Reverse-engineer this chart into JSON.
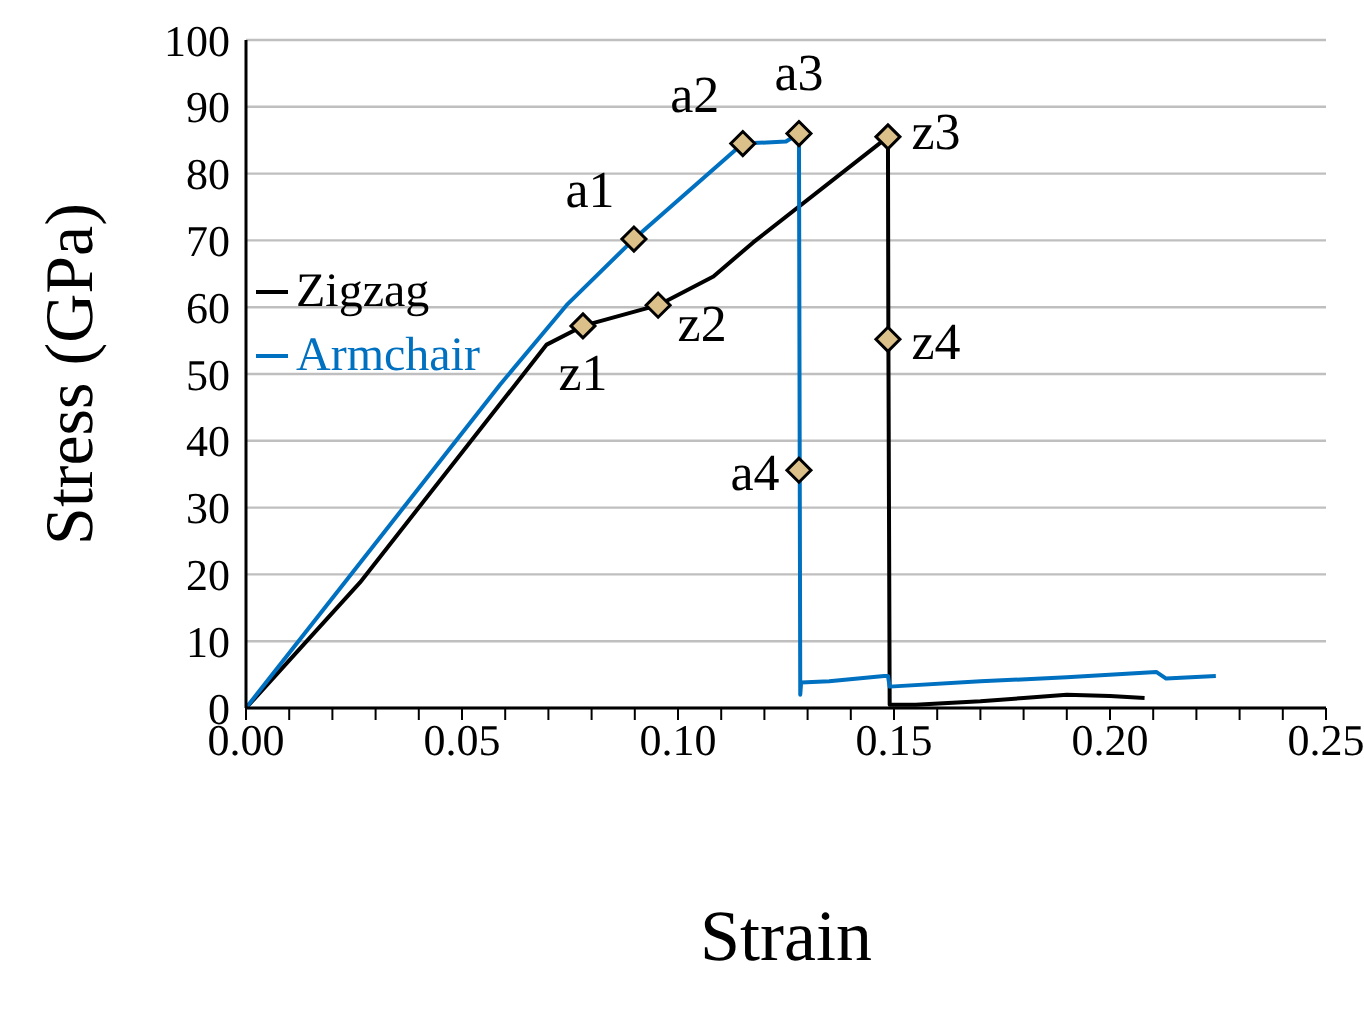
{
  "chart_data": {
    "type": "line",
    "xlabel": "Strain",
    "ylabel": "Stress (GPa)",
    "xlim": [
      0,
      0.25
    ],
    "ylim": [
      0,
      100
    ],
    "xticks": [
      {
        "value": 0,
        "label": "0.00"
      },
      {
        "value": 0.01,
        "label": null
      },
      {
        "value": 0.02,
        "label": null
      },
      {
        "value": 0.03,
        "label": null
      },
      {
        "value": 0.04,
        "label": null
      },
      {
        "value": 0.05,
        "label": "0.05"
      },
      {
        "value": 0.06,
        "label": null
      },
      {
        "value": 0.07,
        "label": null
      },
      {
        "value": 0.08,
        "label": null
      },
      {
        "value": 0.09,
        "label": null
      },
      {
        "value": 0.1,
        "label": "0.10"
      },
      {
        "value": 0.11,
        "label": null
      },
      {
        "value": 0.12,
        "label": null
      },
      {
        "value": 0.13,
        "label": null
      },
      {
        "value": 0.14,
        "label": null
      },
      {
        "value": 0.15,
        "label": "0.15"
      },
      {
        "value": 0.16,
        "label": null
      },
      {
        "value": 0.17,
        "label": null
      },
      {
        "value": 0.18,
        "label": null
      },
      {
        "value": 0.19,
        "label": null
      },
      {
        "value": 0.2,
        "label": "0.20"
      },
      {
        "value": 0.21,
        "label": null
      },
      {
        "value": 0.22,
        "label": null
      },
      {
        "value": 0.23,
        "label": null
      },
      {
        "value": 0.24,
        "label": null
      },
      {
        "value": 0.25,
        "label": "0.25"
      }
    ],
    "yticks": [
      0,
      10,
      20,
      30,
      40,
      50,
      60,
      70,
      80,
      90,
      100
    ],
    "grid": "y",
    "legend": "top left",
    "marker": "none",
    "line_style": "solid",
    "series": [
      {
        "name": "Zigzag",
        "color": "#000000",
        "x": [
          0,
          0.0264,
          0.0696,
          0.078,
          0.0954,
          0.1082,
          0.1174,
          0.1486,
          0.1487,
          0.149,
          0.155,
          0.17,
          0.18,
          0.19,
          0.2,
          0.208
        ],
        "values": [
          0,
          18.8,
          54.4,
          57.2,
          60.3,
          64.6,
          69.7,
          85.5,
          55.2,
          0.5,
          0.5,
          1,
          1.5,
          2,
          1.8,
          1.5
        ]
      },
      {
        "name": "Armchair",
        "color": "#0070c0",
        "x": [
          0,
          0.0248,
          0.0588,
          0.0742,
          0.0898,
          0.115,
          0.125,
          0.128,
          0.1283,
          0.1285,
          0.135,
          0.1477,
          0.1486,
          0.149,
          0.17,
          0.19,
          0.2107,
          0.213,
          0.2245
        ],
        "values": [
          0,
          20.4,
          48.4,
          60.3,
          70.2,
          84.5,
          84.8,
          86,
          2,
          3.8,
          4,
          4.8,
          4.8,
          3.2,
          4,
          4.6,
          5.4,
          4.4,
          4.8
        ]
      },
      {
        "type": "scatter",
        "color": "#dcc089",
        "marker": "diamond",
        "x": [
          0.0898,
          0.115,
          0.128,
          0.128,
          0.078,
          0.0954,
          0.1486,
          0.1486
        ],
        "values": [
          70.2,
          84.5,
          86,
          35.6,
          57.2,
          60.3,
          85.5,
          55.2
        ]
      }
    ],
    "annotations": [
      {
        "text": "a1",
        "x": 0.0898,
        "y": 70.2
      },
      {
        "text": "a2",
        "x": 0.115,
        "y": 84.5
      },
      {
        "text": "a3",
        "x": 0.128,
        "y": 86
      },
      {
        "text": "a4",
        "x": 0.128,
        "y": 35.6
      },
      {
        "text": "z1",
        "x": 0.078,
        "y": 57.2
      },
      {
        "text": "z2",
        "x": 0.0954,
        "y": 60.3
      },
      {
        "text": "z3",
        "x": 0.1486,
        "y": 85.5
      },
      {
        "text": "z4",
        "x": 0.1486,
        "y": 55.2
      }
    ]
  }
}
